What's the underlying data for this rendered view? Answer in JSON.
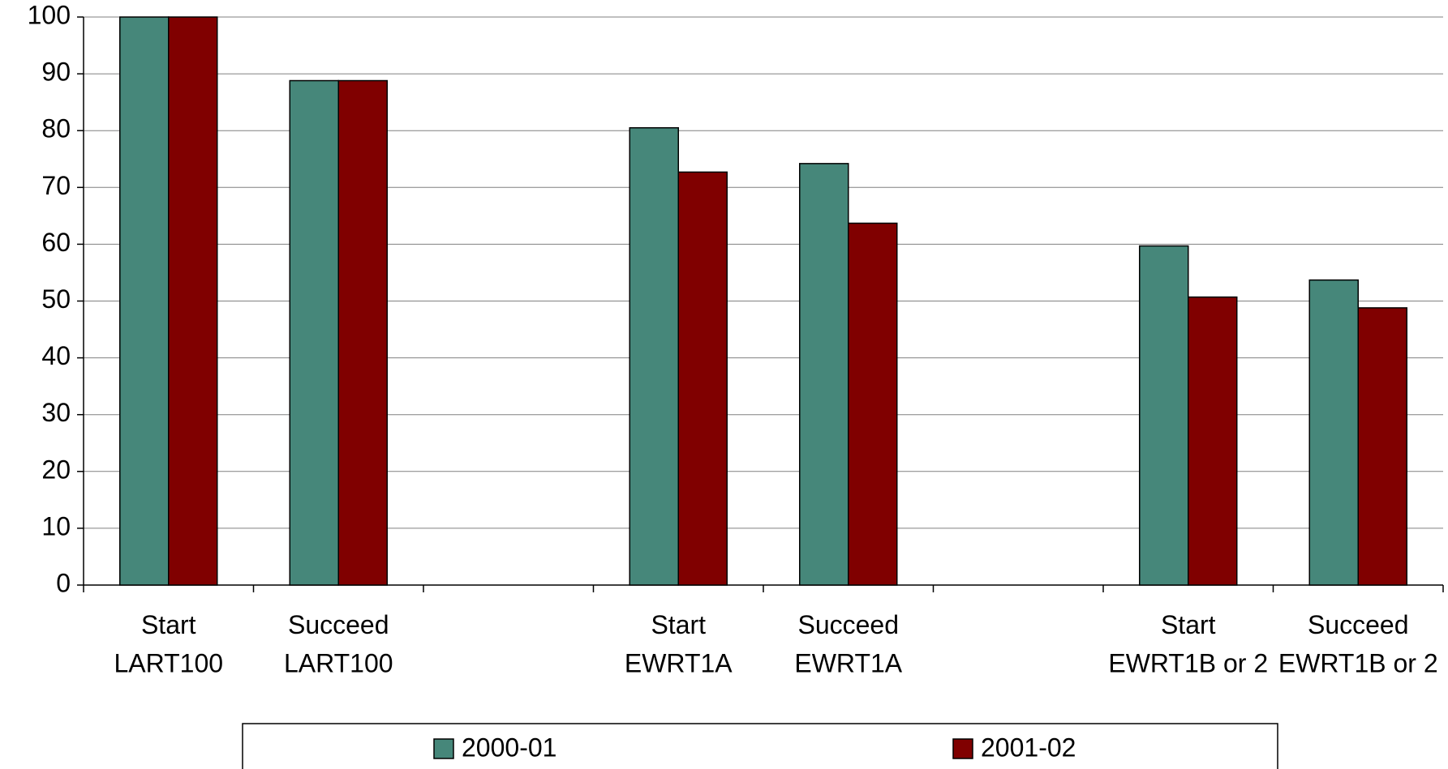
{
  "chart_data": {
    "type": "bar",
    "categories": [
      "Start LART100",
      "Succeed LART100",
      null,
      "Start EWRT1A",
      "Succeed EWRT1A",
      null,
      "Start EWRT1B or 2",
      "Succeed EWRT1B or 2"
    ],
    "series": [
      {
        "name": "2000-01",
        "color": "#46877a",
        "values": [
          100,
          88.8,
          null,
          80.5,
          74.2,
          null,
          59.7,
          53.7
        ]
      },
      {
        "name": "2001-02",
        "color": "#800000",
        "values": [
          100,
          88.8,
          null,
          72.7,
          63.7,
          null,
          50.7,
          48.8
        ]
      }
    ],
    "ylim": [
      0,
      100
    ],
    "yticks": [
      0,
      10,
      20,
      30,
      40,
      50,
      60,
      70,
      80,
      90,
      100
    ],
    "grid": true,
    "legend": "bottom"
  }
}
